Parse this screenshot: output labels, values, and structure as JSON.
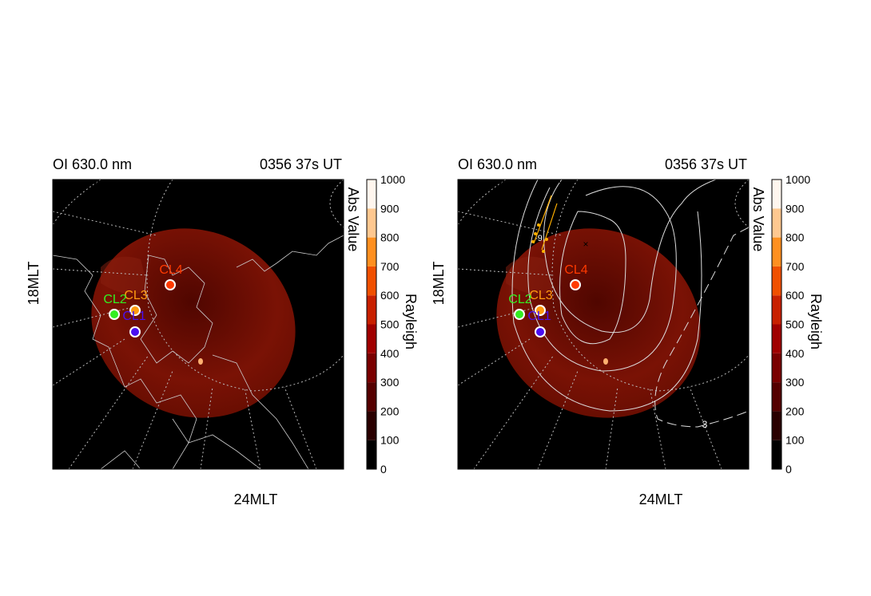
{
  "chart_data": {
    "type": "heatmap",
    "panels": [
      {
        "title_left": "OI 630.0 nm",
        "title_right": "0356 37s UT",
        "ylabel": "18MLT",
        "xlabel": "24MLT",
        "overlay": "coastlines",
        "colorbar_title": "Abs Value",
        "colorbar_unit": "Rayleigh",
        "markers": [
          {
            "label": "CL4",
            "color": "#ff3a00"
          },
          {
            "label": "CL3",
            "color": "#ff9a10"
          },
          {
            "label": "CL2",
            "color": "#33ee22"
          },
          {
            "label": "CL1",
            "color": "#4a10f0"
          }
        ],
        "contour_labels": []
      },
      {
        "title_left": "OI 630.0 nm",
        "title_right": "0356 37s UT",
        "ylabel": "18MLT",
        "xlabel": "24MLT",
        "overlay": "potential contours",
        "colorbar_title": "Abs Value",
        "colorbar_unit": "Rayleigh",
        "markers": [
          {
            "label": "CL4",
            "color": "#ff3a00"
          },
          {
            "label": "CL3",
            "color": "#ff9a10"
          },
          {
            "label": "CL2",
            "color": "#33ee22"
          },
          {
            "label": "CL1",
            "color": "#4a10f0"
          }
        ],
        "contour_labels": [
          "-9",
          "3"
        ]
      }
    ],
    "colorbar": {
      "range": [
        0,
        1000
      ],
      "ticks": [
        "0",
        "100",
        "200",
        "300",
        "400",
        "500",
        "600",
        "700",
        "800",
        "900",
        "1000"
      ],
      "colors": [
        "#000000",
        "#2a0000",
        "#550000",
        "#7a0000",
        "#a00000",
        "#c82000",
        "#f05000",
        "#ff9020",
        "#ffc890",
        "#fff6ee"
      ]
    }
  }
}
